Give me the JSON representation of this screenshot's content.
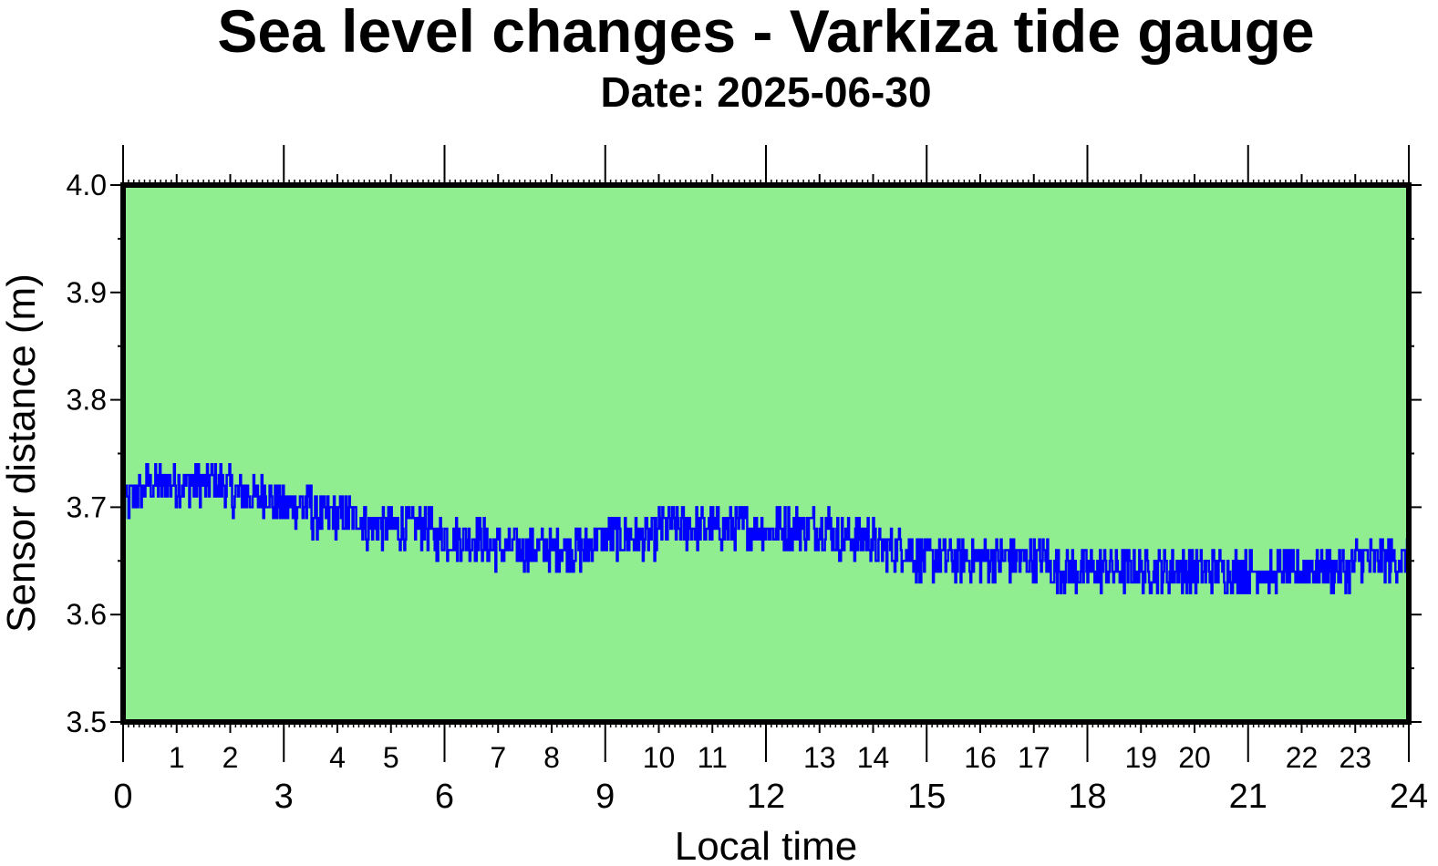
{
  "chart_data": {
    "type": "line",
    "title": "Sea level changes - Varkiza tide gauge",
    "subtitle": "Date: 2025-06-30",
    "xlabel": "Local time",
    "ylabel": "Sensor distance (m)",
    "xlim": [
      0,
      24
    ],
    "ylim": [
      3.5,
      4.0
    ],
    "x_major_ticks": [
      "0",
      "3",
      "6",
      "9",
      "12",
      "15",
      "18",
      "21",
      "24"
    ],
    "x_minor_ticks": [
      "1",
      "2",
      "4",
      "5",
      "7",
      "8",
      "10",
      "11",
      "13",
      "14",
      "16",
      "17",
      "19",
      "20",
      "22",
      "23"
    ],
    "y_ticks": [
      "3.5",
      "3.6",
      "3.7",
      "3.8",
      "3.9",
      "4.0"
    ],
    "grid": false,
    "background_color": "#90ee90",
    "line_color": "#0000ff",
    "series": [
      {
        "x": [
          0.0,
          0.5,
          1.0,
          1.5,
          2.0,
          2.5,
          3.0,
          3.5,
          4.0,
          4.5,
          5.0,
          5.5,
          6.0,
          6.5,
          7.0,
          7.5,
          8.0,
          8.5,
          9.0,
          9.5,
          10.0,
          10.5,
          11.0,
          11.5,
          12.0,
          12.5,
          13.0,
          13.5,
          14.0,
          14.5,
          15.0,
          15.5,
          16.0,
          16.5,
          17.0,
          17.5,
          18.0,
          18.5,
          19.0,
          19.5,
          20.0,
          20.5,
          21.0,
          21.5,
          22.0,
          22.5,
          23.0,
          23.5,
          24.0
        ],
        "values": [
          3.7,
          3.72,
          3.72,
          3.72,
          3.715,
          3.71,
          3.7,
          3.695,
          3.69,
          3.685,
          3.68,
          3.68,
          3.67,
          3.67,
          3.66,
          3.66,
          3.66,
          3.66,
          3.67,
          3.67,
          3.675,
          3.68,
          3.68,
          3.68,
          3.675,
          3.675,
          3.68,
          3.67,
          3.665,
          3.66,
          3.65,
          3.65,
          3.65,
          3.655,
          3.65,
          3.64,
          3.64,
          3.635,
          3.64,
          3.64,
          3.64,
          3.64,
          3.635,
          3.635,
          3.635,
          3.64,
          3.645,
          3.65,
          3.645
        ]
      }
    ]
  }
}
